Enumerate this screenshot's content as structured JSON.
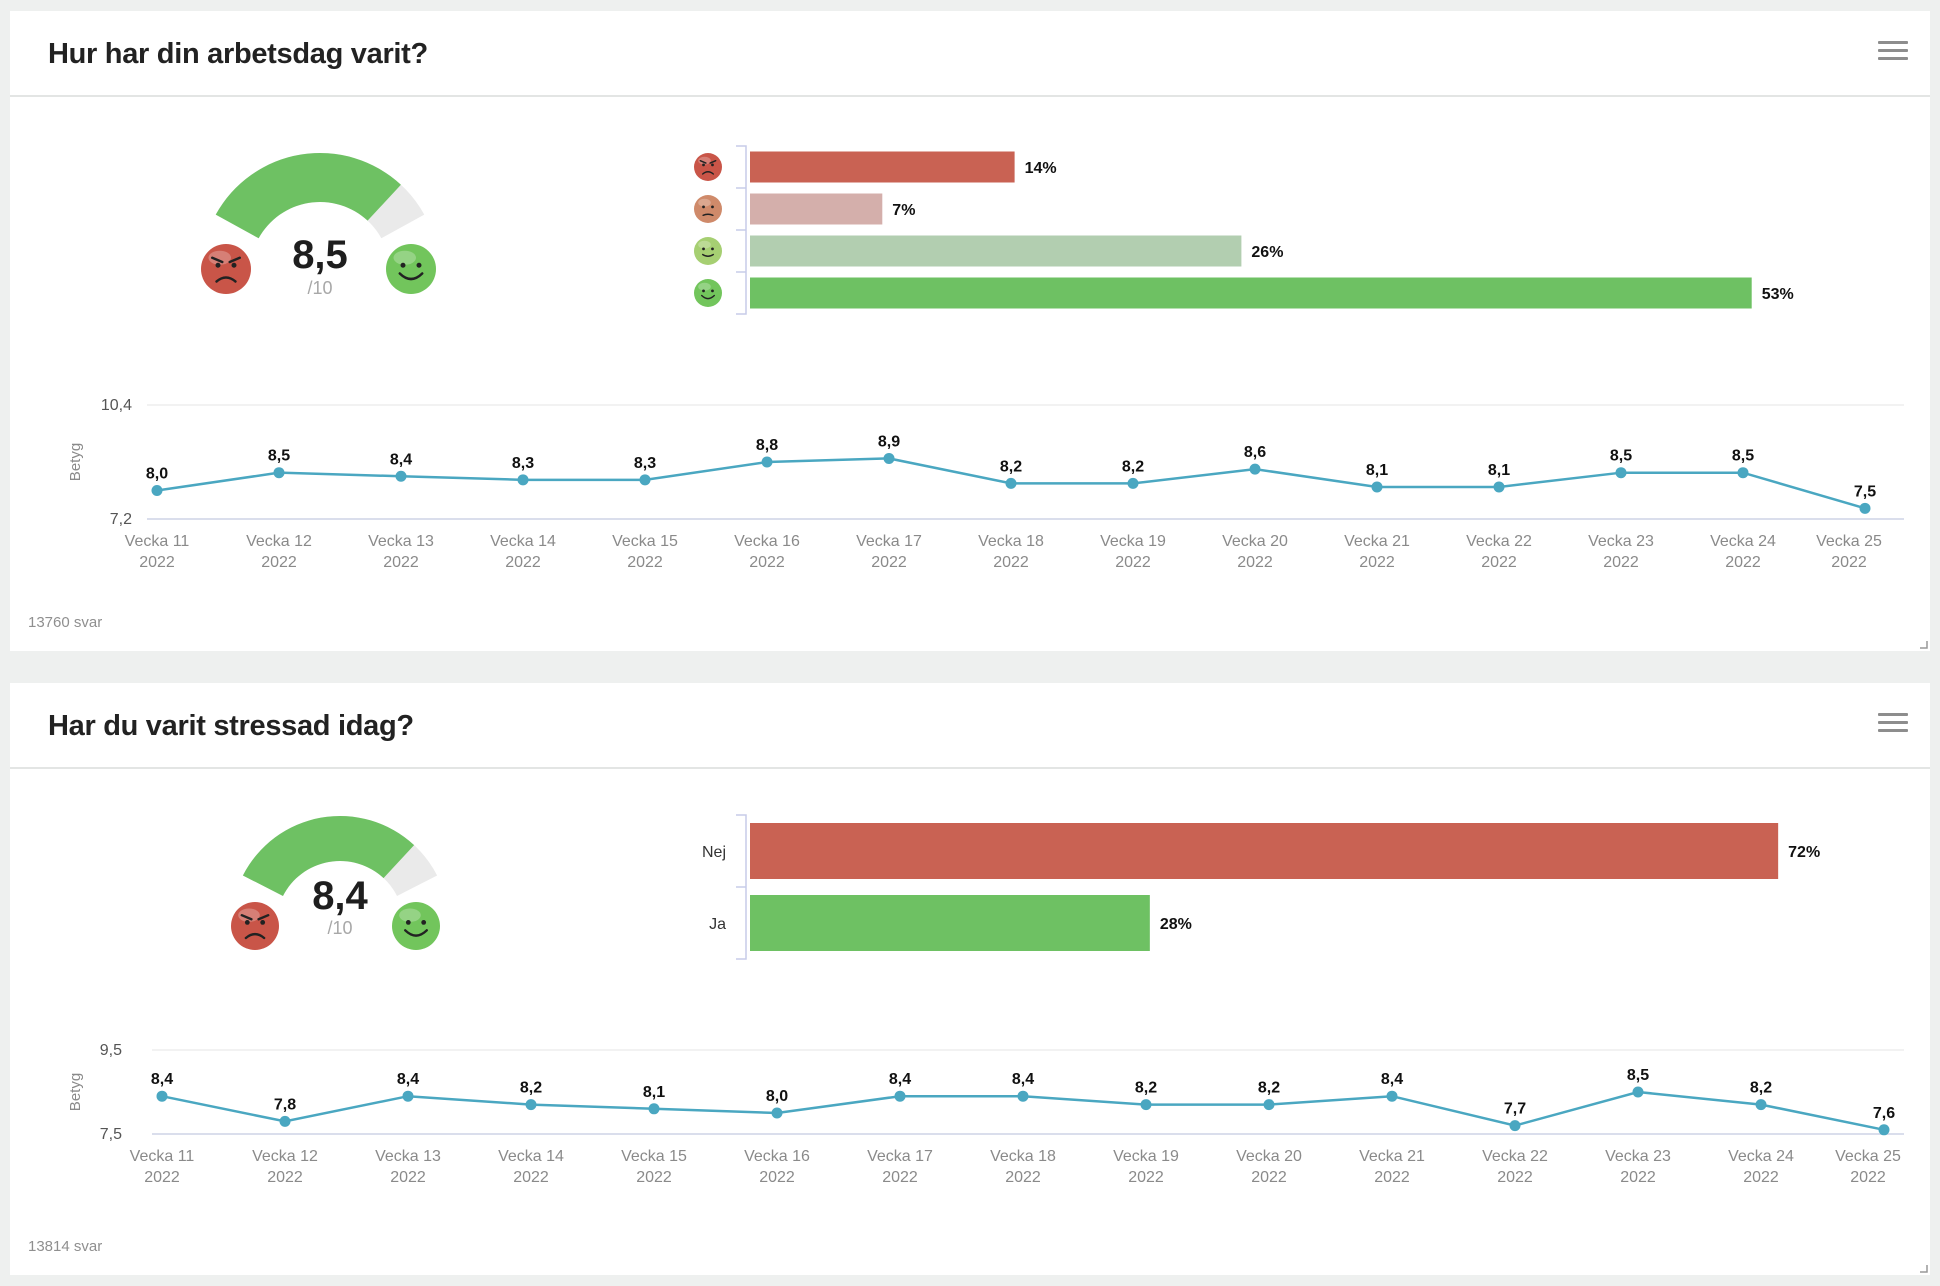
{
  "cards": [
    {
      "title": "Hur har din arbetsdag varit?",
      "responses": "13760 svar",
      "gauge": {
        "value_label": "8,5",
        "max_label": "/10",
        "value": 8.5,
        "max": 10
      },
      "distribution": {
        "type": "bar",
        "orientation": "horizontal",
        "labels_are_icons": true,
        "categories": [
          "angry-face-icon",
          "sad-face-icon",
          "smile-face-icon",
          "happy-face-icon"
        ],
        "values": [
          14,
          7,
          26,
          53
        ],
        "value_labels": [
          "14%",
          "7%",
          "26%",
          "53%"
        ],
        "colors": [
          "#c96253",
          "#d4afab",
          "#b2ceb0",
          "#6ec163"
        ],
        "face_colors": [
          "#c95548",
          "#cf8a6a",
          "#a6cf72",
          "#72c55c"
        ]
      },
      "trend": {
        "type": "line",
        "ylabel": "Betyg",
        "ylim": [
          7.2,
          10.4
        ],
        "ytick_labels": [
          "10,4",
          "7,2"
        ],
        "categories": [
          "Vecka 11",
          "Vecka 12",
          "Vecka 13",
          "Vecka 14",
          "Vecka 15",
          "Vecka 16",
          "Vecka 17",
          "Vecka 18",
          "Vecka 19",
          "Vecka 20",
          "Vecka 21",
          "Vecka 22",
          "Vecka 23",
          "Vecka 24",
          "Vecka 25"
        ],
        "year": "2022",
        "values": [
          8.0,
          8.5,
          8.4,
          8.3,
          8.3,
          8.8,
          8.9,
          8.2,
          8.2,
          8.6,
          8.1,
          8.1,
          8.5,
          8.5,
          7.5
        ],
        "value_labels": [
          "8,0",
          "8,5",
          "8,4",
          "8,3",
          "8,3",
          "8,8",
          "8,9",
          "8,2",
          "8,2",
          "8,6",
          "8,1",
          "8,1",
          "8,5",
          "8,5",
          "7,5"
        ],
        "line_color": "#4aa7c1"
      }
    },
    {
      "title": "Har du varit stressad idag?",
      "responses": "13814 svar",
      "gauge": {
        "value_label": "8,4",
        "max_label": "/10",
        "value": 8.4,
        "max": 10
      },
      "distribution": {
        "type": "bar",
        "orientation": "horizontal",
        "labels_are_icons": false,
        "categories": [
          "Nej",
          "Ja"
        ],
        "values": [
          72,
          28
        ],
        "value_labels": [
          "72%",
          "28%"
        ],
        "colors": [
          "#c96253",
          "#6ec163"
        ]
      },
      "trend": {
        "type": "line",
        "ylabel": "Betyg",
        "ylim": [
          7.5,
          9.5
        ],
        "ytick_labels": [
          "9,5",
          "7,5"
        ],
        "categories": [
          "Vecka 11",
          "Vecka 12",
          "Vecka 13",
          "Vecka 14",
          "Vecka 15",
          "Vecka 16",
          "Vecka 17",
          "Vecka 18",
          "Vecka 19",
          "Vecka 20",
          "Vecka 21",
          "Vecka 22",
          "Vecka 23",
          "Vecka 24",
          "Vecka 25"
        ],
        "year": "2022",
        "values": [
          8.4,
          7.8,
          8.4,
          8.2,
          8.1,
          8.0,
          8.4,
          8.4,
          8.2,
          8.2,
          8.4,
          7.7,
          8.5,
          8.2,
          7.6
        ],
        "value_labels": [
          "8,4",
          "7,8",
          "8,4",
          "8,2",
          "8,1",
          "8,0",
          "8,4",
          "8,4",
          "8,2",
          "8,2",
          "8,4",
          "7,7",
          "8,5",
          "8,2",
          "7,6"
        ],
        "line_color": "#4aa7c1"
      }
    }
  ],
  "chart_data": [
    {
      "type": "bar",
      "title": "Hur har din arbetsdag varit?",
      "categories": [
        "angry-face-icon",
        "sad-face-icon",
        "smile-face-icon",
        "happy-face-icon"
      ],
      "values": [
        14,
        7,
        26,
        53
      ],
      "unit": "%"
    },
    {
      "type": "line",
      "title": "Hur har din arbetsdag varit?",
      "ylabel": "Betyg",
      "ylim": [
        7.2,
        10.4
      ],
      "categories": [
        "Vecka 11",
        "Vecka 12",
        "Vecka 13",
        "Vecka 14",
        "Vecka 15",
        "Vecka 16",
        "Vecka 17",
        "Vecka 18",
        "Vecka 19",
        "Vecka 20",
        "Vecka 21",
        "Vecka 22",
        "Vecka 23",
        "Vecka 24",
        "Vecka 25"
      ],
      "values": [
        8.0,
        8.5,
        8.4,
        8.3,
        8.3,
        8.8,
        8.9,
        8.2,
        8.2,
        8.6,
        8.1,
        8.1,
        8.5,
        8.5,
        7.5
      ]
    },
    {
      "type": "bar",
      "title": "Har du varit stressad idag?",
      "categories": [
        "Nej",
        "Ja"
      ],
      "values": [
        72,
        28
      ],
      "unit": "%"
    },
    {
      "type": "line",
      "title": "Har du varit stressad idag?",
      "ylabel": "Betyg",
      "ylim": [
        7.5,
        9.5
      ],
      "categories": [
        "Vecka 11",
        "Vecka 12",
        "Vecka 13",
        "Vecka 14",
        "Vecka 15",
        "Vecka 16",
        "Vecka 17",
        "Vecka 18",
        "Vecka 19",
        "Vecka 20",
        "Vecka 21",
        "Vecka 22",
        "Vecka 23",
        "Vecka 24",
        "Vecka 25"
      ],
      "values": [
        8.4,
        7.8,
        8.4,
        8.2,
        8.1,
        8.0,
        8.4,
        8.4,
        8.2,
        8.2,
        8.4,
        7.7,
        8.5,
        8.2,
        7.6
      ]
    }
  ]
}
